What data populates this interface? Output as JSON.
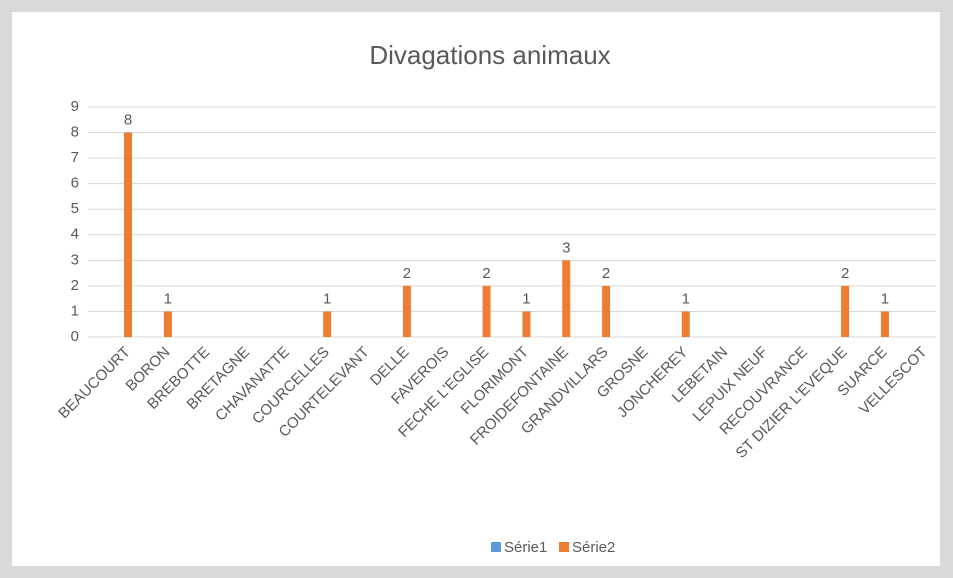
{
  "chart_data": {
    "type": "bar",
    "title": "Divagations animaux",
    "categories": [
      "BEAUCOURT",
      "BORON",
      "BREBOTTE",
      "BRETAGNE",
      "CHAVANATTE",
      "COURCELLES",
      "COURTELEVANT",
      "DELLE",
      "FAVEROIS",
      "FECHE L'EGLISE",
      "FLORIMONT",
      "FROIDEFONTAINE",
      "GRANDVILLARS",
      "GROSNE",
      "JONCHEREY",
      "LEBETAIN",
      "LEPUIX NEUF",
      "RECOUVRANCE",
      "ST DIZIER L'EVEQUE",
      "SUARCE",
      "VELLESCOT"
    ],
    "series": [
      {
        "name": "Série1",
        "color": "#5b9bd5",
        "values": [
          null,
          null,
          null,
          null,
          null,
          null,
          null,
          null,
          null,
          null,
          null,
          null,
          null,
          null,
          null,
          null,
          null,
          null,
          null,
          null,
          null
        ]
      },
      {
        "name": "Série2",
        "color": "#ed7d31",
        "values": [
          8,
          1,
          null,
          null,
          null,
          1,
          null,
          2,
          null,
          2,
          1,
          3,
          2,
          null,
          1,
          null,
          null,
          null,
          2,
          1,
          null
        ]
      }
    ],
    "ylim": [
      0,
      9
    ],
    "yticks": [
      0,
      1,
      2,
      3,
      4,
      5,
      6,
      7,
      8,
      9
    ],
    "grid": true,
    "legend": "bottom",
    "data_labels": true
  }
}
